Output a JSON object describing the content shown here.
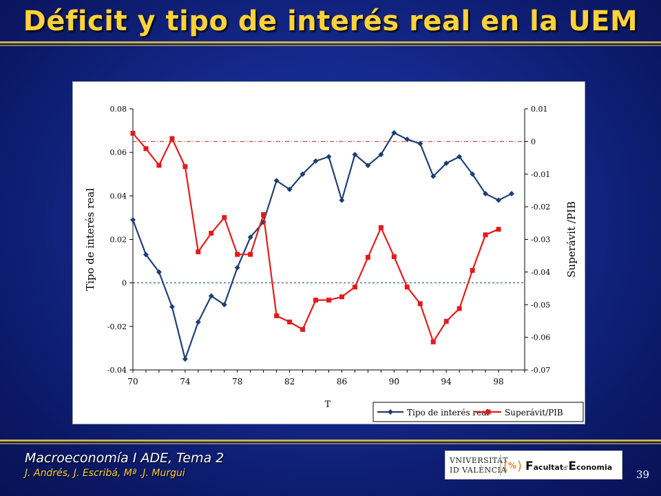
{
  "slide": {
    "title": "Déficit y tipo de interés real en la UEM",
    "course": "Macroeconomía I ADE, Tema 2",
    "authors": "J. Andrés, J. Escribá, Mª .J. Murgui",
    "page_number": "39",
    "logo": {
      "university": [
        "VNIVERSITAT",
        "ID VALÈNCIA"
      ],
      "faculty_prefix": "F",
      "faculty_word1": "acultat",
      "faculty_de": "d'",
      "faculty_e": "E",
      "faculty_word2": "conomia",
      "badge": "%"
    }
  },
  "colors": {
    "background": "#14288a",
    "title": "#ffd23a",
    "series_rate": "#1f3f73",
    "series_surplus": "#e31a1a"
  },
  "chart_data": {
    "type": "line",
    "title": "",
    "xlabel": "T",
    "ylabel_left": "Tipo de interés real",
    "ylabel_right": "Superávit /PIB",
    "x_ticks": [
      "70",
      "74",
      "78",
      "82",
      "86",
      "90",
      "94",
      "98"
    ],
    "xlim": [
      1970,
      2000
    ],
    "ylim_left": [
      -0.04,
      0.08
    ],
    "yticks_left": [
      "0.08",
      "0.06",
      "0.04",
      "0.02",
      "0",
      "-0.02",
      "-0.04"
    ],
    "ylim_right": [
      -0.07,
      0.01
    ],
    "yticks_right": [
      "0.01",
      "0",
      "-0.01",
      "-0.02",
      "-0.03",
      "-0.04",
      "-0.05",
      "-0.06",
      "-0.07"
    ],
    "reference_lines": [
      {
        "axis": "left",
        "value": 0,
        "color": "#1f3f73",
        "style": "dashed"
      },
      {
        "axis": "right",
        "value": 0,
        "color": "#e31a1a",
        "style": "dash-dot"
      }
    ],
    "legend": {
      "position": "bottom-right",
      "entries": [
        "Tipo de interés real",
        "Superávit/PIB"
      ]
    },
    "x": [
      1970,
      1971,
      1972,
      1973,
      1974,
      1975,
      1976,
      1977,
      1978,
      1979,
      1980,
      1981,
      1982,
      1983,
      1984,
      1985,
      1986,
      1987,
      1988,
      1989,
      1990,
      1991,
      1992,
      1993,
      1994,
      1995,
      1996,
      1997,
      1998,
      1999
    ],
    "series": [
      {
        "name": "Tipo de interés real",
        "axis": "left",
        "marker": "diamond",
        "values": [
          0.029,
          0.013,
          0.005,
          -0.011,
          -0.035,
          -0.018,
          -0.006,
          -0.01,
          0.007,
          0.021,
          0.028,
          0.047,
          0.043,
          0.05,
          0.056,
          0.058,
          0.038,
          0.059,
          0.054,
          0.059,
          0.069,
          0.066,
          0.064,
          0.049,
          0.055,
          0.058,
          0.05,
          0.041,
          0.038,
          0.041
        ]
      },
      {
        "name": "Superávit/PIB",
        "axis": "right",
        "marker": "square",
        "values": [
          0.0025,
          -0.0022,
          -0.0073,
          0.0009,
          -0.0077,
          -0.0338,
          -0.0281,
          -0.0233,
          -0.0346,
          -0.0346,
          -0.0224,
          -0.0534,
          -0.0553,
          -0.0576,
          -0.0486,
          -0.0486,
          -0.0476,
          -0.0446,
          -0.0355,
          -0.0264,
          -0.0353,
          -0.0446,
          -0.0497,
          -0.0614,
          -0.0551,
          -0.0512,
          -0.0395,
          -0.0286,
          -0.0269,
          null
        ]
      }
    ]
  }
}
